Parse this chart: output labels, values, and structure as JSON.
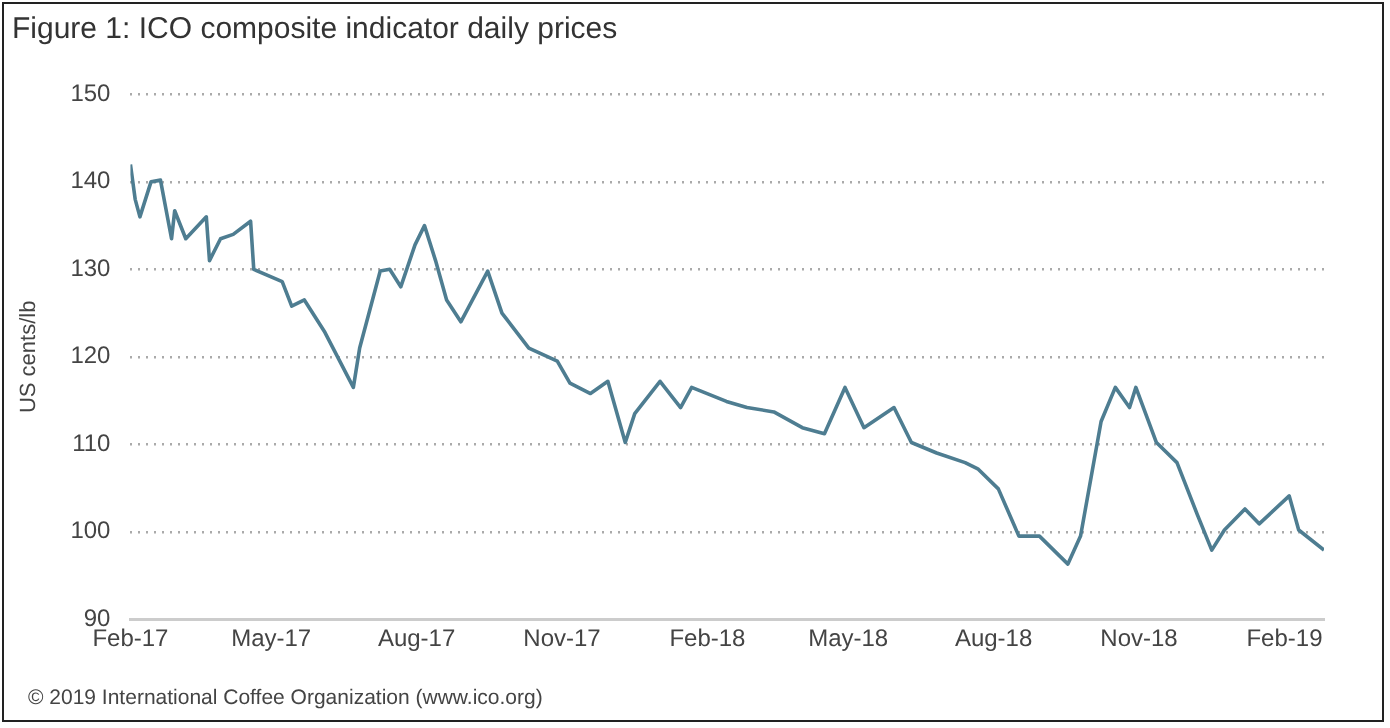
{
  "chart_data": {
    "type": "line",
    "title": "Figure 1: ICO composite indicator daily prices",
    "ylabel": "US cents/lb",
    "annotations": [
      "© 2019 International Coffee Organization (www.ico.org)"
    ],
    "x": [
      "2017-02-01",
      "2017-02-04",
      "2017-02-07",
      "2017-02-14",
      "2017-02-20",
      "2017-02-27",
      "2017-03-01",
      "2017-03-08",
      "2017-03-21",
      "2017-03-23",
      "2017-03-30",
      "2017-04-07",
      "2017-04-18",
      "2017-04-20",
      "2017-05-08",
      "2017-05-14",
      "2017-05-22",
      "2017-06-04",
      "2017-06-22",
      "2017-06-26",
      "2017-07-09",
      "2017-07-15",
      "2017-07-22",
      "2017-07-31",
      "2017-08-06",
      "2017-08-13",
      "2017-08-20",
      "2017-08-29",
      "2017-09-15",
      "2017-09-24",
      "2017-10-11",
      "2017-10-29",
      "2017-11-06",
      "2017-11-19",
      "2017-11-30",
      "2017-12-11",
      "2017-12-17",
      "2018-01-02",
      "2018-01-15",
      "2018-01-22",
      "2018-02-13",
      "2018-02-26",
      "2018-03-15",
      "2018-04-02",
      "2018-04-16",
      "2018-04-29",
      "2018-05-11",
      "2018-05-30",
      "2018-06-10",
      "2018-06-26",
      "2018-07-14",
      "2018-07-22",
      "2018-08-04",
      "2018-08-17",
      "2018-08-30",
      "2018-09-17",
      "2018-09-25",
      "2018-10-08",
      "2018-10-17",
      "2018-10-26",
      "2018-10-30",
      "2018-11-12",
      "2018-11-25",
      "2018-12-08",
      "2018-12-17",
      "2018-12-25",
      "2019-01-07",
      "2019-01-16",
      "2019-02-04",
      "2019-02-10",
      "2019-02-26"
    ],
    "series": [
      {
        "color": "#4e7d91",
        "values": [
          142,
          138,
          136,
          140,
          140.2,
          133.5,
          136.7,
          133.5,
          136,
          131,
          133.5,
          134,
          135.5,
          130,
          128.6,
          125.8,
          126.5,
          122.8,
          116.5,
          121,
          129.8,
          130,
          128,
          132.8,
          135,
          131,
          126.5,
          124,
          129.8,
          125,
          121,
          119.5,
          117,
          115.8,
          117.2,
          110.2,
          113.5,
          117.2,
          114.2,
          116.5,
          114.9,
          114.2,
          113.7,
          111.9,
          111.2,
          116.5,
          111.9,
          114.2,
          110.2,
          109,
          107.9,
          107.2,
          104.9,
          99.5,
          99.5,
          96.3,
          99.5,
          112.6,
          116.5,
          114.2,
          116.5,
          110.2,
          107.9,
          101.9,
          97.9,
          100.2,
          102.6,
          100.9,
          104.1,
          100.2,
          97.9
        ]
      }
    ],
    "xlim": [
      "2017-02-01",
      "2019-02-26"
    ],
    "xticks": [
      {
        "value": "2017-02-01",
        "label": "Feb-17"
      },
      {
        "value": "2017-05-01",
        "label": "May-17"
      },
      {
        "value": "2017-08-01",
        "label": "Aug-17"
      },
      {
        "value": "2017-11-01",
        "label": "Nov-17"
      },
      {
        "value": "2018-02-01",
        "label": "Feb-18"
      },
      {
        "value": "2018-05-01",
        "label": "May-18"
      },
      {
        "value": "2018-08-01",
        "label": "Aug-18"
      },
      {
        "value": "2018-11-01",
        "label": "Nov-18"
      },
      {
        "value": "2019-02-01",
        "label": "Feb-19"
      }
    ],
    "ylim": [
      90,
      150
    ],
    "yticks": [
      90,
      100,
      110,
      120,
      130,
      140,
      150
    ],
    "grid": "y",
    "legend": false,
    "marker": "none",
    "line_style": "solid"
  }
}
